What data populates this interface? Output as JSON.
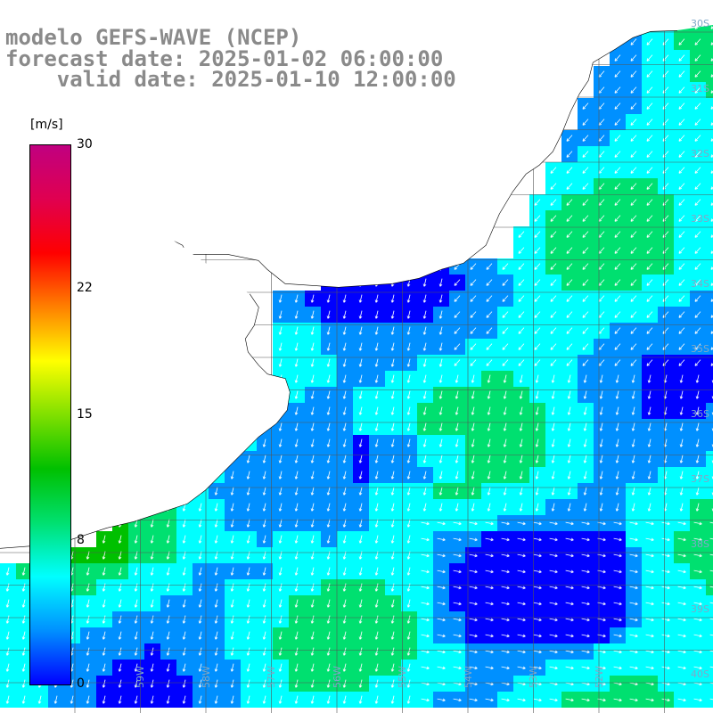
{
  "title": {
    "line1": "modelo GEFS-WAVE (NCEP)",
    "line2": "forecast date: 2025-01-02 06:00:00",
    "line3": "    valid date: 2025-01-10 12:00:00"
  },
  "colorbar": {
    "unit": "[m/s]",
    "ticks": [
      "30",
      "22",
      "15",
      "8",
      "0"
    ],
    "tick_values": [
      30,
      22,
      15,
      8,
      0
    ],
    "range": [
      0,
      30
    ],
    "colors": [
      "#0000ff",
      "#0090ff",
      "#00ffff",
      "#00e070",
      "#00c000",
      "#80e000",
      "#ffff00",
      "#ff8000",
      "#ff0000",
      "#e00050",
      "#c00080"
    ]
  },
  "lat_labels": [
    "40S",
    "39S",
    "38S",
    "37S",
    "36S",
    "35S",
    "34S",
    "33S",
    "32S",
    "31S",
    "30S"
  ],
  "lon_labels": [
    "59W",
    "58W",
    "57W",
    "56W",
    "55W",
    "54W",
    "53W",
    "52W"
  ],
  "grid": true,
  "land_color": "#ffffff",
  "arrow_color": "#ffffff",
  "field": {
    "variable": "wind speed",
    "units": "m/s"
  }
}
